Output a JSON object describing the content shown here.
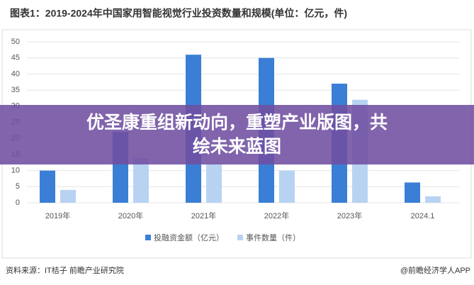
{
  "chart_data": {
    "type": "bar",
    "title": "图表1：2019-2024年中国家用智能视觉行业投资数量和规模(单位：亿元，件)",
    "categories": [
      "2019年",
      "2020年",
      "2021年",
      "2022年",
      "2023年",
      "2024.1"
    ],
    "series": [
      {
        "name": "投融资金额（亿元）",
        "color": "#3a7fd5",
        "values": [
          10,
          22,
          46,
          45,
          37,
          6.3
        ]
      },
      {
        "name": "事件数量（件）",
        "color": "#b8d3f2",
        "values": [
          4,
          14,
          12,
          10,
          32,
          2
        ]
      }
    ],
    "ylim": [
      0,
      50
    ],
    "yticks": [
      0,
      5,
      10,
      15,
      20,
      25,
      30,
      35,
      40,
      45,
      50
    ],
    "grid": true,
    "legend": "bottom"
  },
  "source": "资料来源：IT桔子 前瞻产业研究院",
  "credit": "@前瞻经济学人APP",
  "banner": [
    "优圣康重组新动向，重塑产业版图，共",
    "绘未来蓝图"
  ]
}
